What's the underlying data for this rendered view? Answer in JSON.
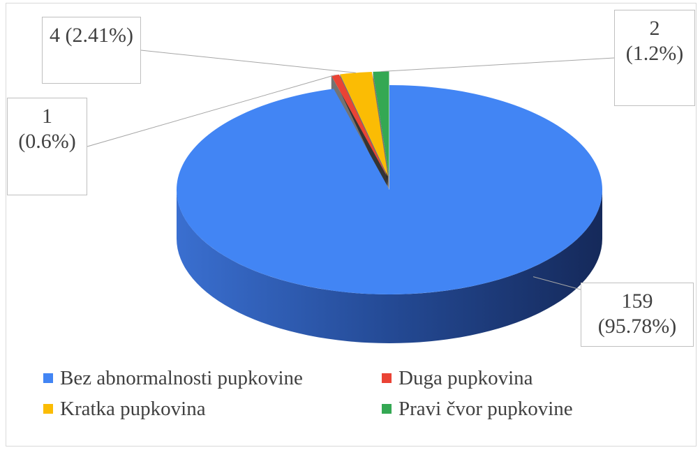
{
  "chart_data": {
    "type": "pie",
    "categories": [
      "Bez abnormalnosti pupkovine",
      "Duga pupkovina",
      "Kratka pupkovina",
      "Pravi čvor pupkovine"
    ],
    "values": [
      159,
      1,
      4,
      2
    ],
    "value_labels": [
      "159 (95.78%)",
      "1 (0.6%)",
      "4 (2.41%)",
      "2 (1.2%)"
    ],
    "colors": [
      "#4285f4",
      "#ea4335",
      "#fbbc04",
      "#34a853"
    ],
    "legend": "bottom"
  }
}
